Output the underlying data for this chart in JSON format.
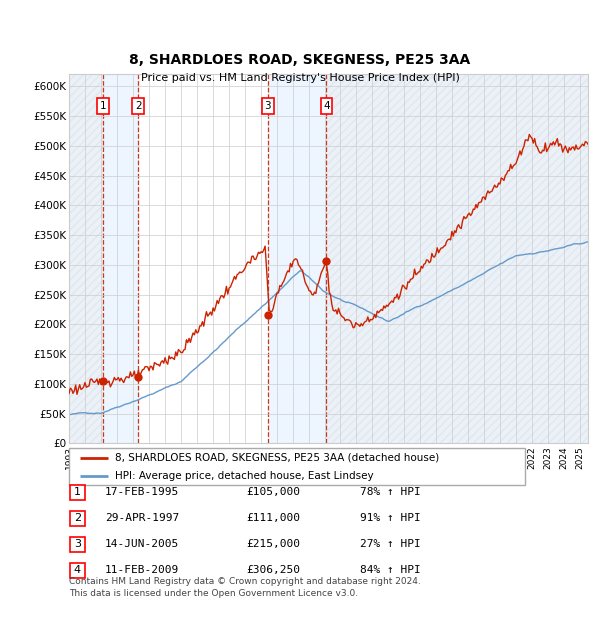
{
  "title1": "8, SHARDLOES ROAD, SKEGNESS, PE25 3AA",
  "title2": "Price paid vs. HM Land Registry's House Price Index (HPI)",
  "ylabel_ticks": [
    "£0",
    "£50K",
    "£100K",
    "£150K",
    "£200K",
    "£250K",
    "£300K",
    "£350K",
    "£400K",
    "£450K",
    "£500K",
    "£550K",
    "£600K"
  ],
  "ytick_vals": [
    0,
    50000,
    100000,
    150000,
    200000,
    250000,
    300000,
    350000,
    400000,
    450000,
    500000,
    550000,
    600000
  ],
  "xlim": [
    1993.0,
    2025.5
  ],
  "ylim": [
    0,
    620000
  ],
  "sale_dates": [
    1995.125,
    1997.33,
    2005.45,
    2009.12
  ],
  "sale_prices": [
    105000,
    111000,
    215000,
    306250
  ],
  "sale_labels": [
    "1",
    "2",
    "3",
    "4"
  ],
  "hpi_color": "#6699cc",
  "price_color": "#cc2200",
  "dot_color": "#cc2200",
  "background_color": "#ffffff",
  "grid_color": "#cccccc",
  "shade_color": "#ddeeff",
  "hatch_color": "#c8d8e8",
  "legend_line1": "8, SHARDLOES ROAD, SKEGNESS, PE25 3AA (detached house)",
  "legend_line2": "HPI: Average price, detached house, East Lindsey",
  "table_rows": [
    [
      "1",
      "17-FEB-1995",
      "£105,000",
      "78% ↑ HPI"
    ],
    [
      "2",
      "29-APR-1997",
      "£111,000",
      "91% ↑ HPI"
    ],
    [
      "3",
      "14-JUN-2005",
      "£215,000",
      "27% ↑ HPI"
    ],
    [
      "4",
      "11-FEB-2009",
      "£306,250",
      "84% ↑ HPI"
    ]
  ],
  "footnote1": "Contains HM Land Registry data © Crown copyright and database right 2024.",
  "footnote2": "This data is licensed under the Open Government Licence v3.0."
}
